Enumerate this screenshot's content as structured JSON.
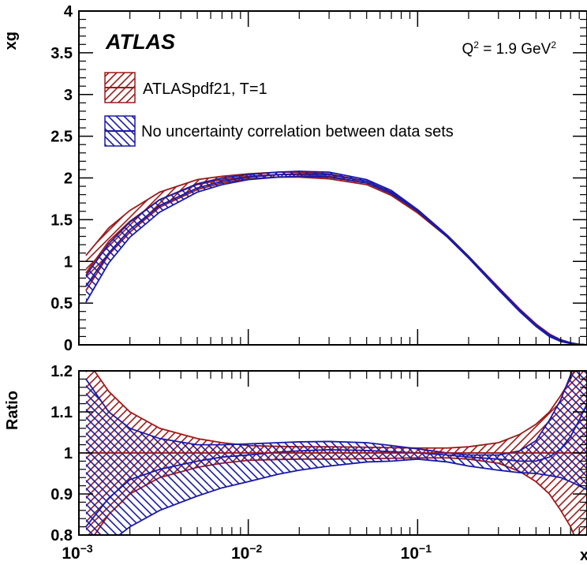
{
  "colors": {
    "red": "#9e1a1a",
    "blue": "#1a1aa8",
    "axis": "#000000"
  },
  "chart_data": [
    {
      "panel": "top",
      "type": "area",
      "xlabel": "x",
      "ylabel": "xg",
      "xscale": "log",
      "xlim": [
        0.001,
        1
      ],
      "ylim": [
        0,
        4
      ],
      "yticks": [
        "0",
        "0.5",
        "1",
        "1.5",
        "2",
        "2.5",
        "3",
        "3.5",
        "4"
      ],
      "xticks": [
        {
          "base": "10",
          "exp": "−3"
        },
        {
          "base": "10",
          "exp": "−2"
        },
        {
          "base": "10",
          "exp": "−1"
        },
        {
          "base": "",
          "exp": ""
        }
      ],
      "experiment": "ATLAS",
      "annotation": {
        "base": "Q",
        "sup1": "2",
        "mid": " = 1.9 GeV",
        "sup2": "2"
      },
      "legend": [
        "ATLASpdf21, T=1",
        "No uncertainty correlation between data sets"
      ],
      "x": [
        0.0011,
        0.0015,
        0.002,
        0.003,
        0.005,
        0.007,
        0.01,
        0.015,
        0.02,
        0.03,
        0.05,
        0.07,
        0.1,
        0.15,
        0.2,
        0.3,
        0.4,
        0.5,
        0.6,
        0.7,
        0.8,
        0.9,
        1.0
      ],
      "series": [
        {
          "name": "ATLASpdf21, T=1",
          "color": "red",
          "central": [
            0.86,
            1.24,
            1.48,
            1.74,
            1.92,
            1.98,
            2.02,
            2.04,
            2.04,
            2.02,
            1.94,
            1.81,
            1.6,
            1.3,
            1.05,
            0.68,
            0.42,
            0.24,
            0.12,
            0.05,
            0.02,
            0.005,
            0.0
          ],
          "upper": [
            1.07,
            1.4,
            1.61,
            1.83,
            1.98,
            2.02,
            2.05,
            2.07,
            2.07,
            2.05,
            1.96,
            1.83,
            1.62,
            1.31,
            1.06,
            0.69,
            0.43,
            0.25,
            0.13,
            0.06,
            0.025,
            0.006,
            0.0
          ],
          "lower": [
            0.65,
            1.08,
            1.35,
            1.65,
            1.86,
            1.94,
            1.99,
            2.01,
            2.01,
            1.99,
            1.92,
            1.79,
            1.58,
            1.29,
            1.04,
            0.67,
            0.41,
            0.23,
            0.11,
            0.04,
            0.015,
            0.004,
            0.0
          ]
        },
        {
          "name": "No uncertainty correlation between data sets",
          "color": "blue",
          "central": [
            0.7,
            1.1,
            1.38,
            1.67,
            1.88,
            1.96,
            2.01,
            2.04,
            2.05,
            2.04,
            1.96,
            1.83,
            1.61,
            1.3,
            1.05,
            0.67,
            0.41,
            0.23,
            0.11,
            0.05,
            0.02,
            0.005,
            0.0
          ],
          "upper": [
            0.83,
            1.21,
            1.47,
            1.74,
            1.93,
            2.0,
            2.04,
            2.07,
            2.08,
            2.07,
            1.98,
            1.85,
            1.62,
            1.31,
            1.06,
            0.68,
            0.42,
            0.24,
            0.12,
            0.06,
            0.025,
            0.006,
            0.0
          ],
          "lower": [
            0.51,
            0.98,
            1.29,
            1.59,
            1.83,
            1.92,
            1.98,
            2.01,
            2.02,
            2.01,
            1.94,
            1.81,
            1.6,
            1.29,
            1.04,
            0.66,
            0.4,
            0.22,
            0.1,
            0.04,
            0.015,
            0.004,
            0.0
          ]
        }
      ]
    },
    {
      "panel": "ratio",
      "type": "area",
      "xlabel": "x",
      "ylabel": "Ratio",
      "xscale": "log",
      "xlim": [
        0.001,
        1
      ],
      "ylim": [
        0.8,
        1.2
      ],
      "yticks": [
        "0.8",
        "0.9",
        "1",
        "1.1",
        "1.2"
      ],
      "x": [
        0.0011,
        0.0015,
        0.002,
        0.003,
        0.005,
        0.007,
        0.01,
        0.015,
        0.02,
        0.03,
        0.05,
        0.07,
        0.1,
        0.15,
        0.2,
        0.3,
        0.4,
        0.5,
        0.6,
        0.7,
        0.8,
        0.9,
        1.0
      ],
      "series": [
        {
          "name": "ATLASpdf21, T=1",
          "color": "red",
          "central": [
            1.0,
            1.0,
            1.0,
            1.0,
            1.0,
            1.0,
            1.0,
            1.0,
            1.0,
            1.0,
            1.0,
            1.0,
            1.0,
            1.0,
            1.0,
            1.0,
            1.0,
            1.0,
            1.0,
            1.0,
            1.0,
            1.0,
            1.0
          ],
          "upper": [
            1.23,
            1.15,
            1.1,
            1.06,
            1.035,
            1.025,
            1.018,
            1.016,
            1.015,
            1.015,
            1.014,
            1.013,
            1.012,
            1.012,
            1.015,
            1.025,
            1.045,
            1.07,
            1.1,
            1.14,
            1.18,
            1.23,
            1.28
          ],
          "lower": [
            0.77,
            0.85,
            0.9,
            0.94,
            0.965,
            0.975,
            0.982,
            0.984,
            0.985,
            0.985,
            0.986,
            0.987,
            0.988,
            0.988,
            0.985,
            0.975,
            0.955,
            0.93,
            0.9,
            0.86,
            0.82,
            0.77,
            0.72
          ]
        },
        {
          "name": "No uncertainty correlation between data sets",
          "color": "blue",
          "central": [
            0.82,
            0.89,
            0.935,
            0.96,
            0.98,
            0.99,
            0.995,
            1.002,
            1.005,
            1.008,
            1.006,
            1.003,
            1.0,
            0.995,
            0.99,
            0.985,
            0.98,
            0.98,
            0.99,
            1.01,
            1.04,
            1.08,
            1.12
          ],
          "upper": [
            1.18,
            1.1,
            1.06,
            1.035,
            1.02,
            1.02,
            1.022,
            1.025,
            1.027,
            1.028,
            1.025,
            1.018,
            1.01,
            1.0,
            0.995,
            0.995,
            1.005,
            1.03,
            1.08,
            1.13,
            1.19,
            1.25,
            1.3
          ],
          "lower": [
            0.7,
            0.78,
            0.82,
            0.86,
            0.895,
            0.915,
            0.93,
            0.948,
            0.958,
            0.968,
            0.978,
            0.98,
            0.985,
            0.978,
            0.968,
            0.958,
            0.952,
            0.95,
            0.945,
            0.94,
            0.93,
            0.92,
            0.91
          ]
        }
      ]
    }
  ]
}
